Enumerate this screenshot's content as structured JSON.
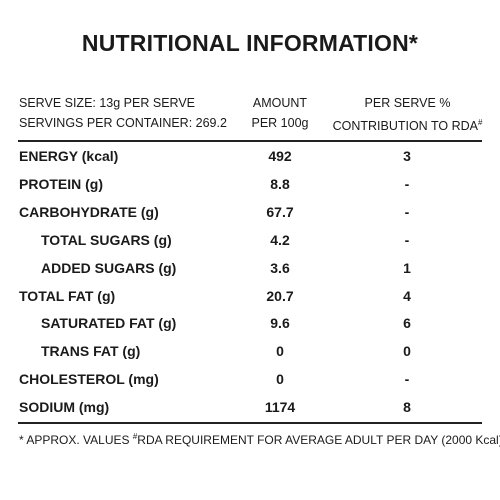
{
  "title": "NUTRITIONAL INFORMATION*",
  "header": {
    "col1": [
      "SERVE SIZE: 13g PER SERVE",
      "SERVINGS PER CONTAINER: 269.2"
    ],
    "col2": [
      "AMOUNT",
      "PER 100g"
    ],
    "col3": [
      "PER SERVE %",
      "CONTRIBUTION TO RDA"
    ],
    "col3_mark": "#"
  },
  "table": {
    "rows": [
      [
        "ENERGY (kcal)",
        "492",
        "3"
      ],
      [
        "PROTEIN (g)",
        "8.8",
        "-"
      ],
      [
        "CARBOHYDRATE (g)",
        "67.7",
        "-"
      ],
      [
        "TOTAL SUGARS (g)",
        "4.2",
        "-"
      ],
      [
        "ADDED SUGARS (g)",
        "3.6",
        "1"
      ],
      [
        "TOTAL FAT (g)",
        "20.7",
        "4"
      ],
      [
        "SATURATED FAT (g)",
        "9.6",
        "6"
      ],
      [
        "TRANS FAT (g)",
        "0",
        "0"
      ],
      [
        "CHOLESTEROL (mg)",
        "0",
        "-"
      ],
      [
        "SODIUM (mg)",
        "1174",
        "8"
      ]
    ]
  },
  "footnote": {
    "prefix": "* APPROX. VALUES ",
    "mark": "#",
    "text": "RDA REQUIREMENT FOR AVERAGE ADULT PER DAY (2000 Kcal)"
  }
}
